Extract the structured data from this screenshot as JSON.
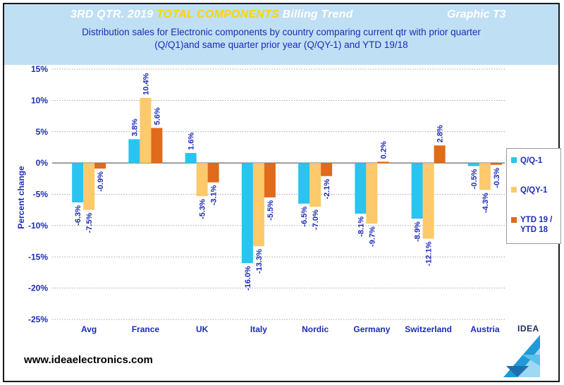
{
  "header": {
    "title_prefix": "3RD QTR. 2019",
    "title_highlight": "TOTAL COMPONENTS",
    "title_suffix": "Billing Trend",
    "graphic_label": "Graphic T3",
    "subtitle_line1": "Distribution  sales for Electronic components by country comparing  current qtr with prior quarter",
    "subtitle_line2": "(Q/Q1)and same quarter prior year (Q/QY-1)  and YTD  19/18"
  },
  "colors": {
    "series": [
      "#29c4f0",
      "#fcc96b",
      "#e06b1a"
    ],
    "axis_text": "#1c2bb8",
    "header_bg": "#bfdff5"
  },
  "chart_data": {
    "type": "bar",
    "title": "Distribution  sales for Electronic components by country comparing  current qtr with prior quarter (Q/Q1)and same quarter prior year (Q/QY-1)  and YTD  19/18",
    "xlabel": "",
    "ylabel": "Percent change",
    "ylim": [
      -25,
      15
    ],
    "yticks": [
      15,
      10,
      5,
      0,
      -5,
      -10,
      -15,
      -20,
      -25
    ],
    "ytick_labels": [
      "15%",
      "10%",
      "5%",
      "0%",
      "-5%",
      "-10%",
      "-15%",
      "-20%",
      "-25%"
    ],
    "grid": true,
    "legend_position": "right",
    "categories": [
      "Avg",
      "France",
      "UK",
      "Italy",
      "Nordic",
      "Germany",
      "Switzerland",
      "Austria"
    ],
    "series": [
      {
        "name": "Q/Q-1",
        "values": [
          -6.3,
          3.8,
          1.6,
          -16.0,
          -6.5,
          -8.1,
          -8.9,
          -0.5
        ],
        "labels": [
          "-6.3%",
          "3.8%",
          "1.6%",
          "-16.0%",
          "-6.5%",
          "-8.1%",
          "-8.9%",
          "-0.5%"
        ]
      },
      {
        "name": "Q/QY-1",
        "values": [
          -7.5,
          10.4,
          -5.3,
          -13.3,
          -7.0,
          -9.7,
          -12.1,
          -4.3
        ],
        "labels": [
          "-7.5%",
          "10.4%",
          "-5.3%",
          "-13.3%",
          "-7.0%",
          "-9.7%",
          "-12.1%",
          "-4.3%"
        ]
      },
      {
        "name": "YTD 19 / YTD 18",
        "values": [
          -0.9,
          5.6,
          -3.1,
          -5.5,
          -2.1,
          0.2,
          2.8,
          -0.3
        ],
        "labels": [
          "-0.9%",
          "5.6%",
          "-3.1%",
          "-5.5%",
          "-2.1%",
          "0.2%",
          "2.8%",
          "-0.3%"
        ]
      }
    ]
  },
  "legend": {
    "items": [
      "Q/Q-1",
      "Q/QY-1",
      "YTD 19 / YTD 18"
    ]
  },
  "footer": {
    "website": "www.ideaelectronics.com"
  },
  "logo": {
    "text": "IDEA",
    "icon": "idea-triangle-logo"
  }
}
